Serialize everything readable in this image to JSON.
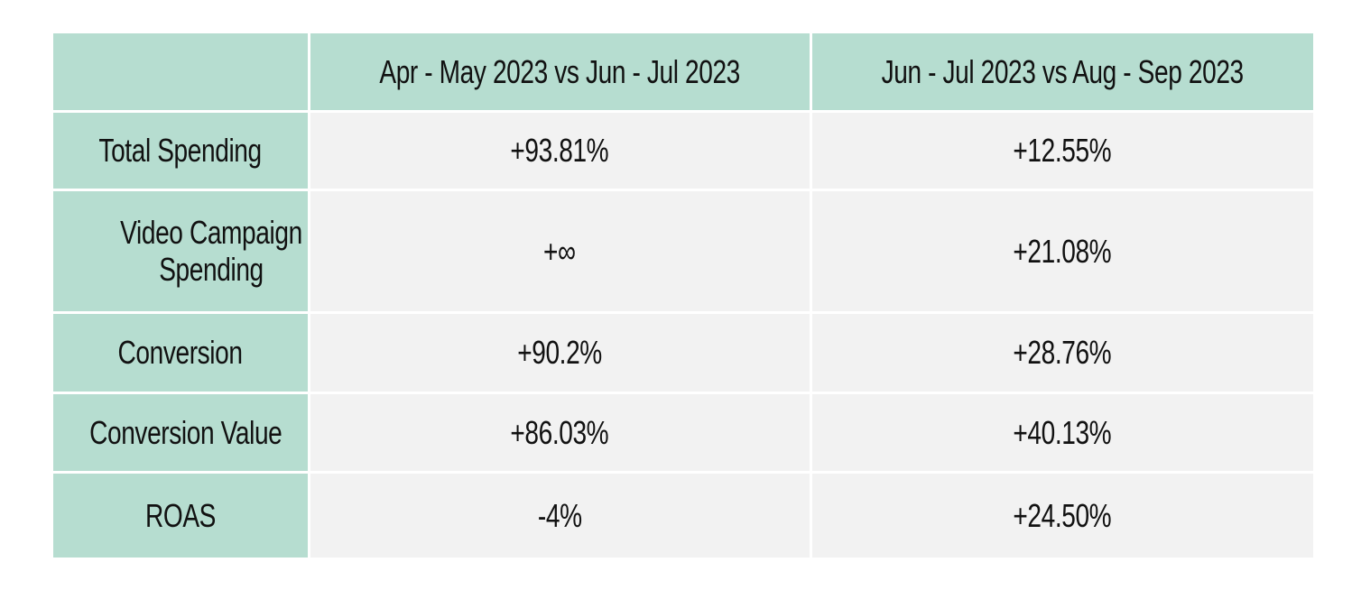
{
  "table": {
    "header": {
      "corner": "",
      "col1": "Apr - May 2023 vs Jun - Jul 2023",
      "col2": "Jun - Jul 2023 vs Aug - Sep 2023"
    },
    "rows": [
      {
        "label": "Total Spending",
        "v1": "+93.81%",
        "v2": "+12.55%"
      },
      {
        "label": "Video Campaign Spending",
        "v1": "+∞",
        "v2": "+21.08%"
      },
      {
        "label": "Conversion",
        "v1": "+90.2%",
        "v2": "+28.76%"
      },
      {
        "label": "Conversion Value",
        "v1": "+86.03%",
        "v2": "+40.13%"
      },
      {
        "label": "ROAS",
        "v1": "-4%",
        "v2": "+24.50%"
      }
    ]
  },
  "colors": {
    "label_bg": "#b6ddd0",
    "value_bg": "#f2f2f2",
    "border": "#ffffff",
    "text": "#111111"
  }
}
